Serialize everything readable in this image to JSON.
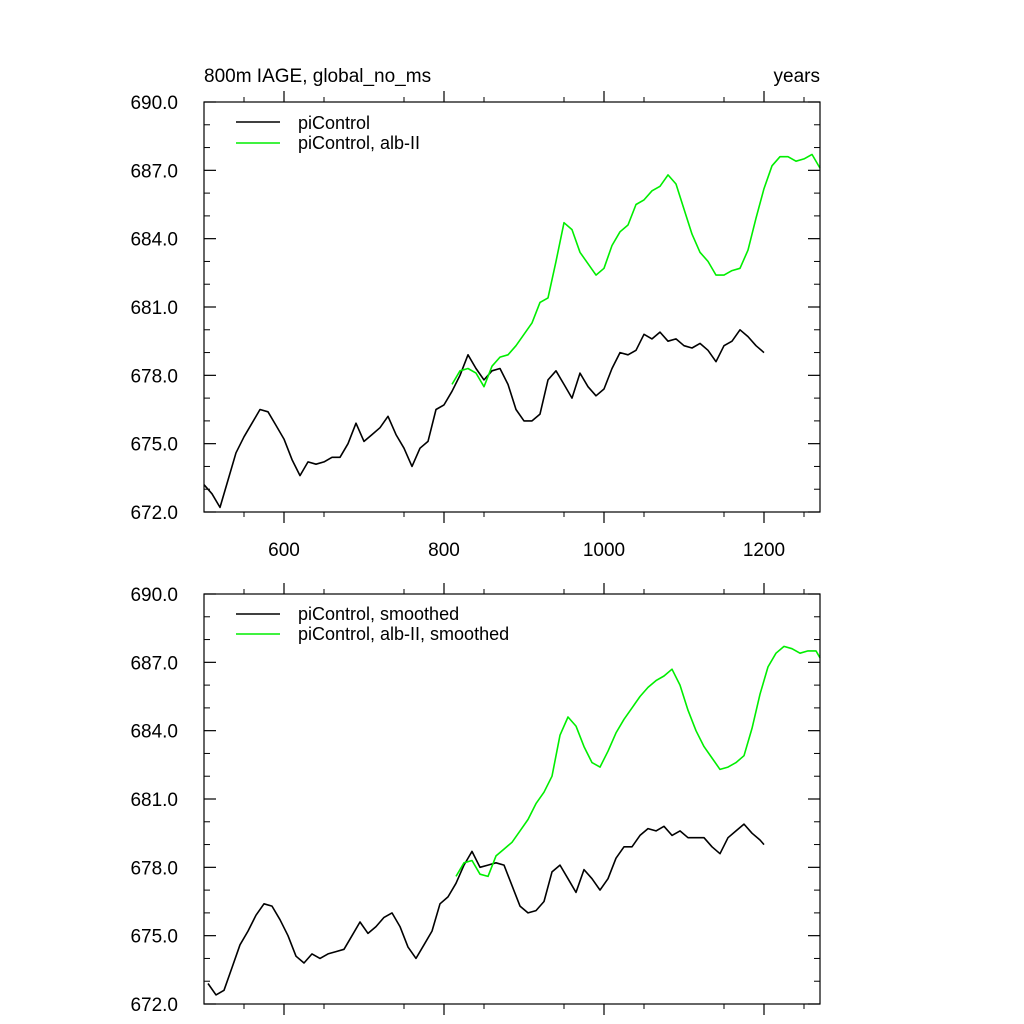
{
  "colors": {
    "black": "#000000",
    "green": "#00ee00"
  },
  "chart_data": [
    {
      "type": "line",
      "title": "800m IAGE, global_no_ms",
      "units": "years",
      "xlim": [
        500,
        1270
      ],
      "ylim": [
        672.0,
        690.0
      ],
      "x_ticks": [
        600,
        800,
        1000,
        1200
      ],
      "x_tick_labels": [
        "600",
        "800",
        "1000",
        "1200"
      ],
      "y_ticks": [
        672,
        675,
        678,
        681,
        684,
        687,
        690
      ],
      "y_tick_labels": [
        "672.0",
        "675.0",
        "678.0",
        "681.0",
        "684.0",
        "687.0",
        "690.0"
      ],
      "legend_position": "top-left",
      "series": [
        {
          "name": "piControl",
          "color": "#000000",
          "points": [
            [
              500,
              673.2
            ],
            [
              510,
              672.8
            ],
            [
              520,
              672.2
            ],
            [
              530,
              673.4
            ],
            [
              540,
              674.6
            ],
            [
              550,
              675.3
            ],
            [
              560,
              675.9
            ],
            [
              570,
              676.5
            ],
            [
              580,
              676.4
            ],
            [
              590,
              675.8
            ],
            [
              600,
              675.2
            ],
            [
              610,
              674.3
            ],
            [
              620,
              673.6
            ],
            [
              630,
              674.2
            ],
            [
              640,
              674.1
            ],
            [
              650,
              674.2
            ],
            [
              660,
              674.4
            ],
            [
              670,
              674.4
            ],
            [
              680,
              675.0
            ],
            [
              690,
              675.9
            ],
            [
              700,
              675.1
            ],
            [
              710,
              675.4
            ],
            [
              720,
              675.7
            ],
            [
              730,
              676.2
            ],
            [
              740,
              675.4
            ],
            [
              750,
              674.8
            ],
            [
              760,
              674.0
            ],
            [
              770,
              674.8
            ],
            [
              780,
              675.1
            ],
            [
              790,
              676.5
            ],
            [
              800,
              676.7
            ],
            [
              810,
              677.3
            ],
            [
              820,
              678.0
            ],
            [
              830,
              678.9
            ],
            [
              840,
              678.3
            ],
            [
              850,
              677.8
            ],
            [
              860,
              678.2
            ],
            [
              870,
              678.3
            ],
            [
              880,
              677.6
            ],
            [
              890,
              676.5
            ],
            [
              900,
              676.0
            ],
            [
              910,
              676.0
            ],
            [
              920,
              676.3
            ],
            [
              930,
              677.8
            ],
            [
              940,
              678.2
            ],
            [
              950,
              677.6
            ],
            [
              960,
              677.0
            ],
            [
              970,
              678.1
            ],
            [
              980,
              677.5
            ],
            [
              990,
              677.1
            ],
            [
              1000,
              677.4
            ],
            [
              1010,
              678.3
            ],
            [
              1020,
              679.0
            ],
            [
              1030,
              678.9
            ],
            [
              1040,
              679.1
            ],
            [
              1050,
              679.8
            ],
            [
              1060,
              679.6
            ],
            [
              1070,
              679.9
            ],
            [
              1080,
              679.5
            ],
            [
              1090,
              679.6
            ],
            [
              1100,
              679.3
            ],
            [
              1110,
              679.2
            ],
            [
              1120,
              679.4
            ],
            [
              1130,
              679.1
            ],
            [
              1140,
              678.6
            ],
            [
              1150,
              679.3
            ],
            [
              1160,
              679.5
            ],
            [
              1170,
              680.0
            ],
            [
              1180,
              679.7
            ],
            [
              1190,
              679.3
            ],
            [
              1200,
              679.0
            ]
          ]
        },
        {
          "name": "piControl, alb-II",
          "color": "#00ee00",
          "points": [
            [
              810,
              677.6
            ],
            [
              820,
              678.2
            ],
            [
              830,
              678.3
            ],
            [
              840,
              678.1
            ],
            [
              850,
              677.5
            ],
            [
              860,
              678.4
            ],
            [
              870,
              678.8
            ],
            [
              880,
              678.9
            ],
            [
              890,
              679.3
            ],
            [
              900,
              679.8
            ],
            [
              910,
              680.3
            ],
            [
              920,
              681.2
            ],
            [
              930,
              681.4
            ],
            [
              940,
              683.0
            ],
            [
              950,
              684.7
            ],
            [
              960,
              684.4
            ],
            [
              970,
              683.4
            ],
            [
              980,
              682.9
            ],
            [
              990,
              682.4
            ],
            [
              1000,
              682.7
            ],
            [
              1010,
              683.7
            ],
            [
              1020,
              684.3
            ],
            [
              1030,
              684.6
            ],
            [
              1040,
              685.5
            ],
            [
              1050,
              685.7
            ],
            [
              1060,
              686.1
            ],
            [
              1070,
              686.3
            ],
            [
              1080,
              686.8
            ],
            [
              1090,
              686.4
            ],
            [
              1100,
              685.3
            ],
            [
              1110,
              684.2
            ],
            [
              1120,
              683.4
            ],
            [
              1130,
              683.0
            ],
            [
              1140,
              682.4
            ],
            [
              1150,
              682.4
            ],
            [
              1160,
              682.6
            ],
            [
              1170,
              682.7
            ],
            [
              1180,
              683.5
            ],
            [
              1190,
              684.9
            ],
            [
              1200,
              686.2
            ],
            [
              1210,
              687.2
            ],
            [
              1220,
              687.6
            ],
            [
              1230,
              687.6
            ],
            [
              1240,
              687.4
            ],
            [
              1250,
              687.5
            ],
            [
              1260,
              687.7
            ],
            [
              1270,
              687.1
            ]
          ]
        }
      ]
    },
    {
      "type": "line",
      "xlim": [
        500,
        1270
      ],
      "ylim": [
        672.0,
        690.0
      ],
      "x_ticks": [
        600,
        800,
        1000,
        1200
      ],
      "y_ticks": [
        672,
        675,
        678,
        681,
        684,
        687,
        690
      ],
      "y_tick_labels": [
        "672.0",
        "675.0",
        "678.0",
        "681.0",
        "684.0",
        "687.0",
        "690.0"
      ],
      "legend_position": "top-left",
      "series": [
        {
          "name": "piControl, smoothed",
          "color": "#000000",
          "points": [
            [
              505,
              672.9
            ],
            [
              515,
              672.4
            ],
            [
              525,
              672.6
            ],
            [
              535,
              673.6
            ],
            [
              545,
              674.6
            ],
            [
              555,
              675.2
            ],
            [
              565,
              675.9
            ],
            [
              575,
              676.4
            ],
            [
              585,
              676.3
            ],
            [
              595,
              675.7
            ],
            [
              605,
              675.0
            ],
            [
              615,
              674.1
            ],
            [
              625,
              673.8
            ],
            [
              635,
              674.2
            ],
            [
              645,
              674.0
            ],
            [
              655,
              674.2
            ],
            [
              665,
              674.3
            ],
            [
              675,
              674.4
            ],
            [
              685,
              675.0
            ],
            [
              695,
              675.6
            ],
            [
              705,
              675.1
            ],
            [
              715,
              675.4
            ],
            [
              725,
              675.8
            ],
            [
              735,
              676.0
            ],
            [
              745,
              675.4
            ],
            [
              755,
              674.5
            ],
            [
              765,
              674.0
            ],
            [
              775,
              674.6
            ],
            [
              785,
              675.2
            ],
            [
              795,
              676.4
            ],
            [
              805,
              676.7
            ],
            [
              815,
              677.3
            ],
            [
              825,
              678.1
            ],
            [
              835,
              678.7
            ],
            [
              845,
              678.0
            ],
            [
              855,
              678.1
            ],
            [
              865,
              678.2
            ],
            [
              875,
              678.1
            ],
            [
              885,
              677.2
            ],
            [
              895,
              676.3
            ],
            [
              905,
              676.0
            ],
            [
              915,
              676.1
            ],
            [
              925,
              676.5
            ],
            [
              935,
              677.8
            ],
            [
              945,
              678.1
            ],
            [
              955,
              677.5
            ],
            [
              965,
              676.9
            ],
            [
              975,
              677.9
            ],
            [
              985,
              677.5
            ],
            [
              995,
              677.0
            ],
            [
              1005,
              677.5
            ],
            [
              1015,
              678.4
            ],
            [
              1025,
              678.9
            ],
            [
              1035,
              678.9
            ],
            [
              1045,
              679.4
            ],
            [
              1055,
              679.7
            ],
            [
              1065,
              679.6
            ],
            [
              1075,
              679.8
            ],
            [
              1085,
              679.4
            ],
            [
              1095,
              679.6
            ],
            [
              1105,
              679.3
            ],
            [
              1115,
              679.3
            ],
            [
              1125,
              679.3
            ],
            [
              1135,
              678.9
            ],
            [
              1145,
              678.6
            ],
            [
              1155,
              679.3
            ],
            [
              1165,
              679.6
            ],
            [
              1175,
              679.9
            ],
            [
              1185,
              679.5
            ],
            [
              1195,
              679.2
            ],
            [
              1200,
              679.0
            ]
          ]
        },
        {
          "name": "piControl, alb-II, smoothed",
          "color": "#00ee00",
          "points": [
            [
              815,
              677.6
            ],
            [
              825,
              678.2
            ],
            [
              835,
              678.3
            ],
            [
              845,
              677.7
            ],
            [
              855,
              677.6
            ],
            [
              865,
              678.5
            ],
            [
              875,
              678.8
            ],
            [
              885,
              679.1
            ],
            [
              895,
              679.6
            ],
            [
              905,
              680.1
            ],
            [
              915,
              680.8
            ],
            [
              925,
              681.3
            ],
            [
              935,
              682.0
            ],
            [
              945,
              683.8
            ],
            [
              955,
              684.6
            ],
            [
              965,
              684.2
            ],
            [
              975,
              683.3
            ],
            [
              985,
              682.6
            ],
            [
              995,
              682.4
            ],
            [
              1005,
              683.1
            ],
            [
              1015,
              683.9
            ],
            [
              1025,
              684.5
            ],
            [
              1035,
              685.0
            ],
            [
              1045,
              685.5
            ],
            [
              1055,
              685.9
            ],
            [
              1065,
              686.2
            ],
            [
              1075,
              686.4
            ],
            [
              1085,
              686.7
            ],
            [
              1095,
              686.0
            ],
            [
              1105,
              684.9
            ],
            [
              1115,
              684.0
            ],
            [
              1125,
              683.3
            ],
            [
              1135,
              682.8
            ],
            [
              1145,
              682.3
            ],
            [
              1155,
              682.4
            ],
            [
              1165,
              682.6
            ],
            [
              1175,
              682.9
            ],
            [
              1185,
              684.1
            ],
            [
              1195,
              685.6
            ],
            [
              1205,
              686.8
            ],
            [
              1215,
              687.4
            ],
            [
              1225,
              687.7
            ],
            [
              1235,
              687.6
            ],
            [
              1245,
              687.4
            ],
            [
              1255,
              687.5
            ],
            [
              1265,
              687.5
            ],
            [
              1270,
              687.2
            ]
          ]
        }
      ]
    }
  ]
}
